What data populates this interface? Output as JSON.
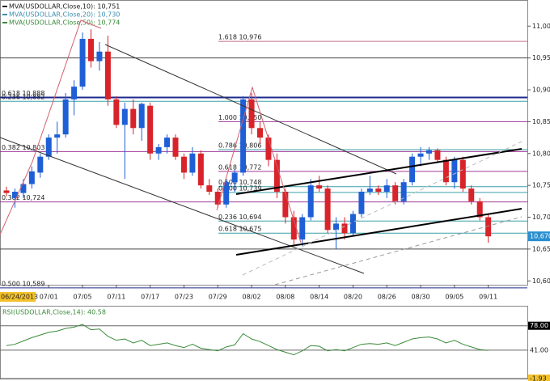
{
  "chart_data": {
    "type": "candlestick",
    "legend": [
      {
        "name": "MVA(USDOLLAR,Close,10): 10,751",
        "color": "#222222"
      },
      {
        "name": "MVA(USDOLLAR,Close,20): 10,730",
        "color": "#3b8fb0"
      },
      {
        "name": "MVA(USDOLLAR,Close,50): 10,774",
        "color": "#3a8a3a"
      }
    ],
    "date_label": "06/24/2013",
    "xticks": [
      {
        "value": 5,
        "label": "07/01"
      },
      {
        "value": 9,
        "label": "07/05"
      },
      {
        "value": 13,
        "label": "07/11"
      },
      {
        "value": 17,
        "label": "07/17"
      },
      {
        "value": 21,
        "label": "07/23"
      },
      {
        "value": 25,
        "label": "07/29"
      },
      {
        "value": 29,
        "label": "08/02"
      },
      {
        "value": 33,
        "label": "08/08"
      },
      {
        "value": 37,
        "label": "08/14"
      },
      {
        "value": 41,
        "label": "08/20"
      },
      {
        "value": 45,
        "label": "08/26"
      },
      {
        "value": 49,
        "label": "08/30"
      },
      {
        "value": 53,
        "label": "09/05"
      },
      {
        "value": 57,
        "label": "09/11"
      }
    ],
    "ylim": [
      10594,
      11041
    ],
    "yticks": [
      {
        "value": 10600,
        "label": "10,600"
      },
      {
        "value": 10650,
        "label": "10,650"
      },
      {
        "value": 10700,
        "label": "10,700"
      },
      {
        "value": 10750,
        "label": "10,750"
      },
      {
        "value": 10800,
        "label": "10,800"
      },
      {
        "value": 10850,
        "label": "10,850"
      },
      {
        "value": 10900,
        "label": "10,900"
      },
      {
        "value": 10950,
        "label": "10,950"
      },
      {
        "value": 11000,
        "label": "11,000"
      }
    ],
    "up_color": "#1f5fd6",
    "down_color": "#d8232a",
    "open": [
      10742,
      10730,
      10738,
      10752,
      10770,
      10795,
      10825,
      10830,
      10885,
      10905,
      10980,
      10945,
      10960,
      10885,
      10845,
      10870,
      10840,
      10875,
      10800,
      10810,
      10825,
      10795,
      10770,
      10800,
      10750,
      10740,
      10720,
      10755,
      10770,
      10885,
      10840,
      10825,
      10790,
      10740,
      10700,
      10665,
      10700,
      10750,
      10745,
      10680,
      10690,
      10675,
      10705,
      10740,
      10745,
      10740,
      10750,
      10725,
      10755,
      10795,
      10800,
      10805,
      10790,
      10755,
      10790,
      10745,
      10725,
      10700
    ],
    "high": [
      10748,
      10745,
      10760,
      10780,
      10800,
      10830,
      10850,
      10895,
      10915,
      10990,
      10995,
      10975,
      10985,
      10890,
      10880,
      10885,
      10880,
      10880,
      10815,
      10830,
      10830,
      10800,
      10810,
      10805,
      10760,
      10745,
      10760,
      10775,
      10890,
      10895,
      10850,
      10830,
      10800,
      10745,
      10710,
      10705,
      10760,
      10765,
      10750,
      10700,
      10700,
      10710,
      10745,
      10765,
      10750,
      10760,
      10755,
      10760,
      10800,
      10810,
      10810,
      10808,
      10795,
      10795,
      10795,
      10750,
      10730,
      10705
    ],
    "low": [
      10733,
      10715,
      10730,
      10745,
      10762,
      10790,
      10800,
      10825,
      10860,
      10900,
      10935,
      10930,
      10875,
      10840,
      10760,
      10830,
      10820,
      10790,
      10790,
      10800,
      10790,
      10760,
      10765,
      10745,
      10735,
      10715,
      10715,
      10740,
      10765,
      10830,
      10815,
      10780,
      10730,
      10690,
      10655,
      10655,
      10695,
      10740,
      10675,
      10650,
      10665,
      10670,
      10700,
      10735,
      10735,
      10730,
      10720,
      10720,
      10750,
      10780,
      10790,
      10785,
      10750,
      10745,
      10740,
      10720,
      10695,
      10660
    ],
    "close": [
      10738,
      10740,
      10752,
      10772,
      10795,
      10825,
      10830,
      10885,
      10905,
      10980,
      10945,
      10960,
      10885,
      10845,
      10870,
      10840,
      10878,
      10800,
      10810,
      10825,
      10795,
      10770,
      10800,
      10750,
      10740,
      10720,
      10755,
      10770,
      10885,
      10840,
      10825,
      10790,
      10740,
      10700,
      10665,
      10700,
      10750,
      10745,
      10680,
      10690,
      10675,
      10705,
      10740,
      10745,
      10740,
      10750,
      10725,
      10755,
      10795,
      10800,
      10805,
      10790,
      10755,
      10790,
      10745,
      10725,
      10700,
      10670
    ],
    "fib_levels": [
      {
        "label": "1.618 10,976",
        "value": 10976,
        "color": "#c0708a"
      },
      {
        "label": "0.618 10,888",
        "value": 10888,
        "color": "#1c2a8c"
      },
      {
        "label": "0.236 10,882",
        "value": 10882,
        "color": "#3aa0a8"
      },
      {
        "label": "1.000 10,850",
        "value": 10850,
        "color": "#a03a9a"
      },
      {
        "label": "0.786 10,806",
        "value": 10806,
        "color": "#3aa0a8"
      },
      {
        "label": "0.382 10,803",
        "value": 10803,
        "color": "#a03a9a"
      },
      {
        "label": "0.618 10,772",
        "value": 10772,
        "color": "#a03a9a"
      },
      {
        "label": "0.500 10,748",
        "value": 10748,
        "color": "#3aa0a8"
      },
      {
        "label": "0.500 10,739",
        "value": 10739,
        "color": "#3aa0a8"
      },
      {
        "label": "0.382 10,724",
        "value": 10724,
        "color": "#a03a9a"
      },
      {
        "label": "0.236 10,694",
        "value": 10694,
        "color": "#3aa0a8"
      },
      {
        "label": "0.618 10,675",
        "value": 10675,
        "color": "#3aa0a8"
      },
      {
        "label": "0.500 10,589",
        "value": 10589,
        "color": "#1c2a8c"
      }
    ],
    "hlines": [
      10950,
      10650
    ],
    "last_price": {
      "value": 10670,
      "label": "10,670"
    },
    "rsi": {
      "title": "RSI(USDOLLAR,Close,14): 40.58",
      "color": "#3a8a3a",
      "ylim": [
        -1.93,
        107
      ],
      "yticks": [
        {
          "value": 78,
          "label": "78.00"
        },
        {
          "value": 41,
          "label": "41.00"
        },
        {
          "value": -1.93,
          "label": "-1.93"
        }
      ],
      "values": [
        48,
        50,
        55,
        60,
        64,
        68,
        70,
        74,
        76,
        80,
        72,
        73,
        62,
        56,
        58,
        52,
        56,
        48,
        50,
        52,
        48,
        45,
        50,
        44,
        42,
        40,
        46,
        49,
        66,
        58,
        54,
        48,
        42,
        38,
        34,
        40,
        48,
        47,
        40,
        42,
        40,
        45,
        50,
        51,
        50,
        52,
        48,
        53,
        58,
        60,
        61,
        58,
        52,
        56,
        50,
        46,
        42,
        40.58
      ]
    }
  }
}
